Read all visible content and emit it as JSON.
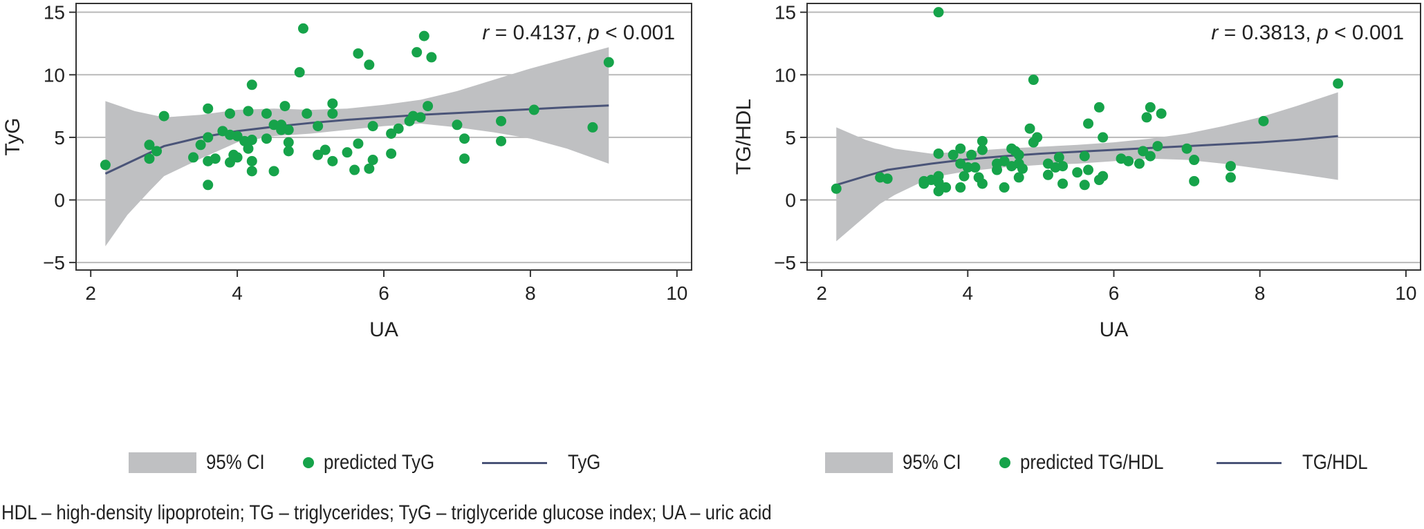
{
  "colors": {
    "ci": "#bfc0c2",
    "points": "#16a34a",
    "line": "#4a5478",
    "grid": "#b9b9b9",
    "axis": "#333333",
    "text": "#222222"
  },
  "chart_data": [
    {
      "type": "scatter",
      "title": "",
      "xlabel": "UA",
      "ylabel": "TyG",
      "xlim": [
        1.8,
        10.2
      ],
      "ylim": [
        -5.6,
        15.7
      ],
      "xticks": [
        2,
        4,
        6,
        8,
        10
      ],
      "xtick_labels": [
        "2",
        "4",
        "6",
        "8",
        "10"
      ],
      "yticks": [
        -5,
        0,
        5,
        10,
        15
      ],
      "ytick_labels": [
        "−5",
        "0",
        "5",
        "10",
        "15"
      ],
      "grid": "horizontal",
      "annotation": {
        "r_symbol": "r",
        "eq1": " = 0.4137, ",
        "p_symbol": "p",
        "eq2": " < 0.001"
      },
      "legend": {
        "placement": "bottom",
        "ci": "95% CI",
        "points": "predicted TyG",
        "line": "TyG"
      },
      "ci_upper": [
        [
          2.2,
          7.9
        ],
        [
          2.6,
          7.1
        ],
        [
          3.0,
          6.6
        ],
        [
          3.5,
          6.8
        ],
        [
          4.0,
          7.2
        ],
        [
          4.5,
          7.3
        ],
        [
          5.0,
          7.2
        ],
        [
          5.5,
          7.3
        ],
        [
          6.0,
          7.6
        ],
        [
          6.5,
          8.0
        ],
        [
          7.0,
          8.7
        ],
        [
          7.5,
          9.6
        ],
        [
          8.0,
          10.5
        ],
        [
          8.5,
          11.3
        ],
        [
          9.07,
          12.2
        ]
      ],
      "ci_lower": [
        [
          2.2,
          -3.7
        ],
        [
          2.5,
          -1.2
        ],
        [
          2.8,
          0.7
        ],
        [
          3.0,
          1.9
        ],
        [
          3.5,
          3.3
        ],
        [
          4.0,
          4.6
        ],
        [
          4.5,
          5.1
        ],
        [
          5.0,
          5.3
        ],
        [
          5.5,
          5.6
        ],
        [
          6.0,
          5.9
        ],
        [
          6.5,
          6.1
        ],
        [
          7.0,
          5.8
        ],
        [
          7.5,
          5.4
        ],
        [
          8.0,
          4.9
        ],
        [
          8.5,
          4.1
        ],
        [
          9.07,
          2.9
        ]
      ],
      "fit": [
        [
          2.2,
          2.1
        ],
        [
          2.6,
          3.2
        ],
        [
          3.0,
          4.3
        ],
        [
          3.5,
          5.0
        ],
        [
          4.0,
          5.5
        ],
        [
          4.5,
          5.85
        ],
        [
          5.0,
          6.15
        ],
        [
          5.5,
          6.4
        ],
        [
          6.0,
          6.6
        ],
        [
          6.5,
          6.8
        ],
        [
          7.0,
          6.95
        ],
        [
          7.5,
          7.1
        ],
        [
          8.0,
          7.25
        ],
        [
          8.5,
          7.4
        ],
        [
          9.07,
          7.55
        ]
      ],
      "points": [
        [
          2.2,
          2.8
        ],
        [
          2.8,
          4.4
        ],
        [
          2.8,
          3.3
        ],
        [
          2.9,
          3.9
        ],
        [
          3.0,
          6.7
        ],
        [
          3.4,
          3.4
        ],
        [
          3.5,
          4.4
        ],
        [
          3.6,
          7.3
        ],
        [
          3.6,
          5.0
        ],
        [
          3.6,
          3.1
        ],
        [
          3.6,
          1.2
        ],
        [
          3.7,
          3.3
        ],
        [
          3.8,
          5.5
        ],
        [
          3.9,
          6.9
        ],
        [
          3.9,
          5.2
        ],
        [
          3.9,
          3.0
        ],
        [
          3.95,
          3.6
        ],
        [
          4.0,
          5.1
        ],
        [
          4.0,
          3.4
        ],
        [
          4.1,
          4.7
        ],
        [
          4.15,
          7.1
        ],
        [
          4.15,
          4.1
        ],
        [
          4.2,
          9.2
        ],
        [
          4.2,
          4.8
        ],
        [
          4.2,
          3.1
        ],
        [
          4.2,
          2.3
        ],
        [
          4.4,
          6.9
        ],
        [
          4.4,
          4.9
        ],
        [
          4.5,
          6.0
        ],
        [
          4.5,
          2.3
        ],
        [
          4.6,
          6.0
        ],
        [
          4.6,
          5.6
        ],
        [
          4.65,
          7.5
        ],
        [
          4.7,
          5.6
        ],
        [
          4.7,
          4.6
        ],
        [
          4.7,
          3.9
        ],
        [
          4.85,
          10.2
        ],
        [
          4.9,
          13.7
        ],
        [
          4.95,
          6.9
        ],
        [
          5.1,
          5.9
        ],
        [
          5.1,
          3.6
        ],
        [
          5.2,
          4.0
        ],
        [
          5.3,
          7.7
        ],
        [
          5.3,
          6.9
        ],
        [
          5.3,
          3.1
        ],
        [
          5.5,
          3.8
        ],
        [
          5.6,
          2.4
        ],
        [
          5.65,
          11.7
        ],
        [
          5.65,
          4.5
        ],
        [
          5.8,
          10.8
        ],
        [
          5.8,
          2.5
        ],
        [
          5.85,
          5.9
        ],
        [
          5.85,
          3.2
        ],
        [
          6.1,
          5.3
        ],
        [
          6.1,
          3.7
        ],
        [
          6.2,
          5.7
        ],
        [
          6.35,
          6.3
        ],
        [
          6.4,
          6.7
        ],
        [
          6.45,
          11.8
        ],
        [
          6.5,
          6.6
        ],
        [
          6.55,
          13.1
        ],
        [
          6.6,
          7.5
        ],
        [
          6.65,
          11.4
        ],
        [
          7.0,
          6.0
        ],
        [
          7.1,
          4.9
        ],
        [
          7.1,
          3.3
        ],
        [
          7.6,
          6.3
        ],
        [
          7.6,
          4.7
        ],
        [
          8.05,
          7.2
        ],
        [
          8.85,
          5.8
        ],
        [
          9.07,
          11.0
        ]
      ]
    },
    {
      "type": "scatter",
      "title": "",
      "xlabel": "UA",
      "ylabel": "TG/HDL",
      "xlim": [
        1.8,
        10.2
      ],
      "ylim": [
        -5.6,
        15.7
      ],
      "xticks": [
        2,
        4,
        6,
        8,
        10
      ],
      "xtick_labels": [
        "2",
        "4",
        "6",
        "8",
        "10"
      ],
      "yticks": [
        -5,
        0,
        5,
        10,
        15
      ],
      "ytick_labels": [
        "−5",
        "0",
        "5",
        "10",
        "15"
      ],
      "grid": "horizontal",
      "annotation": {
        "r_symbol": "r",
        "eq1": " = 0.3813, ",
        "p_symbol": "p",
        "eq2": " < 0.001"
      },
      "legend": {
        "placement": "bottom",
        "ci": "95% CI",
        "points": "predicted TG/HDL",
        "line": "TG/HDL"
      },
      "ci_upper": [
        [
          2.2,
          5.8
        ],
        [
          2.6,
          4.8
        ],
        [
          3.0,
          4.1
        ],
        [
          3.5,
          3.7
        ],
        [
          4.0,
          3.9
        ],
        [
          4.5,
          4.1
        ],
        [
          5.0,
          4.25
        ],
        [
          5.5,
          4.4
        ],
        [
          6.0,
          4.6
        ],
        [
          6.5,
          4.9
        ],
        [
          7.0,
          5.3
        ],
        [
          7.5,
          5.9
        ],
        [
          8.0,
          6.6
        ],
        [
          8.5,
          7.5
        ],
        [
          9.07,
          8.6
        ]
      ],
      "ci_lower": [
        [
          2.2,
          -3.3
        ],
        [
          2.5,
          -1.8
        ],
        [
          2.8,
          -0.3
        ],
        [
          3.0,
          0.4
        ],
        [
          3.5,
          1.8
        ],
        [
          4.0,
          2.3
        ],
        [
          4.5,
          2.6
        ],
        [
          5.0,
          2.8
        ],
        [
          5.5,
          2.9
        ],
        [
          6.0,
          3.1
        ],
        [
          6.5,
          3.3
        ],
        [
          7.0,
          3.2
        ],
        [
          7.5,
          2.9
        ],
        [
          8.0,
          2.5
        ],
        [
          8.5,
          2.1
        ],
        [
          9.07,
          1.6
        ]
      ],
      "fit": [
        [
          2.2,
          1.2
        ],
        [
          2.6,
          1.9
        ],
        [
          2.9,
          2.4
        ],
        [
          3.5,
          2.9
        ],
        [
          4.0,
          3.25
        ],
        [
          4.5,
          3.5
        ],
        [
          5.0,
          3.7
        ],
        [
          5.5,
          3.85
        ],
        [
          6.0,
          4.0
        ],
        [
          6.5,
          4.15
        ],
        [
          7.0,
          4.3
        ],
        [
          7.5,
          4.45
        ],
        [
          8.0,
          4.6
        ],
        [
          8.5,
          4.8
        ],
        [
          9.07,
          5.1
        ]
      ],
      "points": [
        [
          2.2,
          0.9
        ],
        [
          2.8,
          1.8
        ],
        [
          2.9,
          1.7
        ],
        [
          3.4,
          1.5
        ],
        [
          3.4,
          1.3
        ],
        [
          3.5,
          1.6
        ],
        [
          3.6,
          3.7
        ],
        [
          3.6,
          1.9
        ],
        [
          3.6,
          1.4
        ],
        [
          3.6,
          0.7
        ],
        [
          3.6,
          15.0
        ],
        [
          3.7,
          1.0
        ],
        [
          3.8,
          3.6
        ],
        [
          3.9,
          4.1
        ],
        [
          3.9,
          2.9
        ],
        [
          3.9,
          1.0
        ],
        [
          3.95,
          1.9
        ],
        [
          4.0,
          2.6
        ],
        [
          4.05,
          3.6
        ],
        [
          4.1,
          2.6
        ],
        [
          4.15,
          1.8
        ],
        [
          4.2,
          4.7
        ],
        [
          4.2,
          4.0
        ],
        [
          4.2,
          1.3
        ],
        [
          4.4,
          2.9
        ],
        [
          4.4,
          2.4
        ],
        [
          4.5,
          3.1
        ],
        [
          4.5,
          1.0
        ],
        [
          4.6,
          4.1
        ],
        [
          4.6,
          2.7
        ],
        [
          4.65,
          3.9
        ],
        [
          4.7,
          3.6
        ],
        [
          4.7,
          2.9
        ],
        [
          4.7,
          1.8
        ],
        [
          4.75,
          2.5
        ],
        [
          4.85,
          5.7
        ],
        [
          4.9,
          4.6
        ],
        [
          4.9,
          9.6
        ],
        [
          4.95,
          5.0
        ],
        [
          5.1,
          2.9
        ],
        [
          5.1,
          2.0
        ],
        [
          5.2,
          2.6
        ],
        [
          5.25,
          3.4
        ],
        [
          5.3,
          2.7
        ],
        [
          5.3,
          1.3
        ],
        [
          5.5,
          2.2
        ],
        [
          5.6,
          3.5
        ],
        [
          5.6,
          1.2
        ],
        [
          5.65,
          6.1
        ],
        [
          5.65,
          2.4
        ],
        [
          5.8,
          7.4
        ],
        [
          5.8,
          1.6
        ],
        [
          5.85,
          5.0
        ],
        [
          5.85,
          1.9
        ],
        [
          6.1,
          3.3
        ],
        [
          6.2,
          3.1
        ],
        [
          6.35,
          2.9
        ],
        [
          6.4,
          3.9
        ],
        [
          6.45,
          6.6
        ],
        [
          6.5,
          7.4
        ],
        [
          6.5,
          3.5
        ],
        [
          6.6,
          4.3
        ],
        [
          6.65,
          6.9
        ],
        [
          7.0,
          4.1
        ],
        [
          7.1,
          3.2
        ],
        [
          7.1,
          1.5
        ],
        [
          7.6,
          2.7
        ],
        [
          7.6,
          1.8
        ],
        [
          8.05,
          6.3
        ],
        [
          9.07,
          9.3
        ]
      ]
    }
  ],
  "footnote": "HDL – high-density lipoprotein; TG – triglycerides; TyG – triglyceride glucose index; UA – uric acid"
}
